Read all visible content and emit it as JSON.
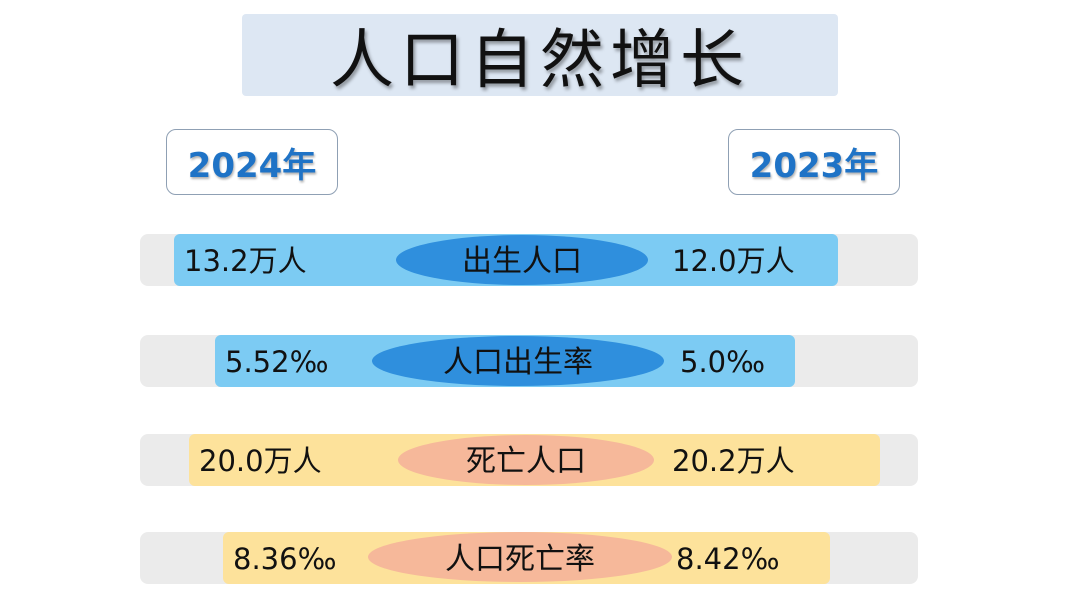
{
  "title": "人口自然增长",
  "year_left": "2024年",
  "year_right": "2023年",
  "colors": {
    "blue_bar": "#7ccbf3",
    "blue_ellipse": "#2f8fdd",
    "yellow_bar": "#fde29b",
    "salmon_ellipse": "#f6b89a",
    "track": "#ebebeb",
    "year_text": "#1f73c6",
    "title_bg": "#dde7f3"
  },
  "chart_data": {
    "type": "table",
    "columns": [
      "2024年",
      "",
      "2023年"
    ],
    "rows": [
      {
        "category": "出生人口",
        "left": "13.2万人",
        "right": "12.0万人",
        "theme": "blue"
      },
      {
        "category": "人口出生率",
        "left": "5.52‰",
        "right": "5.0‰",
        "theme": "blue"
      },
      {
        "category": "死亡人口",
        "left": "20.0万人",
        "right": "20.2万人",
        "theme": "yellow"
      },
      {
        "category": "人口死亡率",
        "left": "8.36‰",
        "right": "8.42‰",
        "theme": "yellow"
      }
    ]
  }
}
